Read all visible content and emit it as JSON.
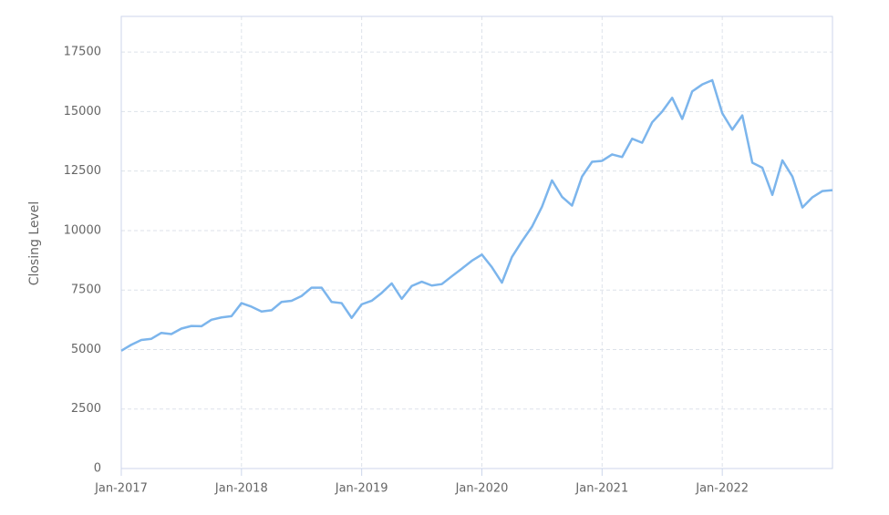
{
  "chart_data": {
    "type": "line",
    "y_label": "Closing Level",
    "x": [
      "2017-01",
      "2017-02",
      "2017-03",
      "2017-04",
      "2017-05",
      "2017-06",
      "2017-07",
      "2017-08",
      "2017-09",
      "2017-10",
      "2017-11",
      "2017-12",
      "2018-01",
      "2018-02",
      "2018-03",
      "2018-04",
      "2018-05",
      "2018-06",
      "2018-07",
      "2018-08",
      "2018-09",
      "2018-10",
      "2018-11",
      "2018-12",
      "2019-01",
      "2019-02",
      "2019-03",
      "2019-04",
      "2019-05",
      "2019-06",
      "2019-07",
      "2019-08",
      "2019-09",
      "2019-10",
      "2019-11",
      "2019-12",
      "2020-01",
      "2020-02",
      "2020-03",
      "2020-04",
      "2020-05",
      "2020-06",
      "2020-07",
      "2020-08",
      "2020-09",
      "2020-10",
      "2020-11",
      "2020-12",
      "2021-01",
      "2021-02",
      "2021-03",
      "2021-04",
      "2021-05",
      "2021-06",
      "2021-07",
      "2021-08",
      "2021-09",
      "2021-10",
      "2021-11",
      "2021-12",
      "2022-01",
      "2022-02",
      "2022-03",
      "2022-04",
      "2022-05",
      "2022-06",
      "2022-07",
      "2022-08",
      "2022-09",
      "2022-10",
      "2022-11",
      "2022-12"
    ],
    "series": [
      {
        "name": "Closing Level",
        "color": "#7cb5ec",
        "values": [
          4950,
          5200,
          5400,
          5450,
          5700,
          5650,
          5880,
          5990,
          5980,
          6250,
          6350,
          6400,
          6950,
          6800,
          6600,
          6650,
          7000,
          7050,
          7250,
          7600,
          7600,
          7000,
          6950,
          6330,
          6900,
          7050,
          7380,
          7780,
          7130,
          7670,
          7850,
          7690,
          7750,
          8080,
          8400,
          8730,
          8990,
          8460,
          7810,
          8890,
          9550,
          10160,
          11000,
          12110,
          11420,
          11050,
          12270,
          12890,
          12930,
          13200,
          13090,
          13860,
          13690,
          14550,
          15000,
          15580,
          14690,
          15850,
          16140,
          16320,
          14930,
          14240,
          14840,
          12850,
          12640,
          11500,
          12950,
          12270,
          10970,
          11400,
          11660,
          11700
        ]
      }
    ],
    "xlim": [
      "2017-01",
      "2022-12"
    ],
    "xticks": [
      {
        "value": "2017-01",
        "label": "Jan-2017"
      },
      {
        "value": "2018-01",
        "label": "Jan-2018"
      },
      {
        "value": "2019-01",
        "label": "Jan-2019"
      },
      {
        "value": "2020-01",
        "label": "Jan-2020"
      },
      {
        "value": "2021-01",
        "label": "Jan-2021"
      },
      {
        "value": "2022-01",
        "label": "Jan-2022"
      }
    ],
    "ylim": [
      0,
      19000
    ],
    "yticks": [
      0,
      2500,
      5000,
      7500,
      10000,
      12500,
      15000,
      17500
    ],
    "grid": true
  }
}
